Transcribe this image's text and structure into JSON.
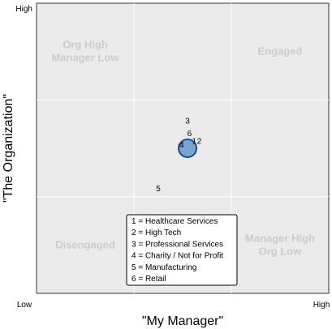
{
  "chart_data": {
    "type": "scatter",
    "xlabel": "\"My Manager\"",
    "ylabel": "\"The Organization\"",
    "x_tick_labels": [
      "Low",
      "High"
    ],
    "y_tick_labels": [
      "High"
    ],
    "xlim": [
      0,
      3
    ],
    "ylim": [
      0,
      3
    ],
    "grid": true,
    "quadrants": [
      {
        "label_lines": [
          "Org High",
          "Manager Low"
        ],
        "position": "top-left"
      },
      {
        "label_lines": [
          "Engaged"
        ],
        "position": "top-right"
      },
      {
        "label_lines": [
          "Disengaged"
        ],
        "position": "bottom-left"
      },
      {
        "label_lines": [
          "Manager High",
          "Org Low"
        ],
        "position": "bottom-right"
      }
    ],
    "points": [
      {
        "label": "1",
        "x": 1.62,
        "y": 1.58
      },
      {
        "label": "2",
        "x": 1.67,
        "y": 1.58
      },
      {
        "label": "3",
        "x": 1.55,
        "y": 1.79
      },
      {
        "label": "4",
        "x": 1.49,
        "y": 1.54
      },
      {
        "label": "5",
        "x": 1.25,
        "y": 1.09
      },
      {
        "label": "6",
        "x": 1.57,
        "y": 1.66
      }
    ],
    "highlight": {
      "x": 1.55,
      "y": 1.5,
      "color": "#6699cc",
      "stroke": "#1f4e8c"
    },
    "legend": {
      "position": "bottom-center",
      "entries": [
        "1 = Healthcare Services",
        "2 = High Tech",
        "3 = Professional Services",
        "4 = Charity / Not for Profit",
        "5 = Manufacturing",
        "6 = Retail"
      ]
    },
    "colors": {
      "panel": "#ebebeb",
      "grid": "#ffffff",
      "quadrant_text": "#cccccc",
      "text": "#000000"
    }
  }
}
